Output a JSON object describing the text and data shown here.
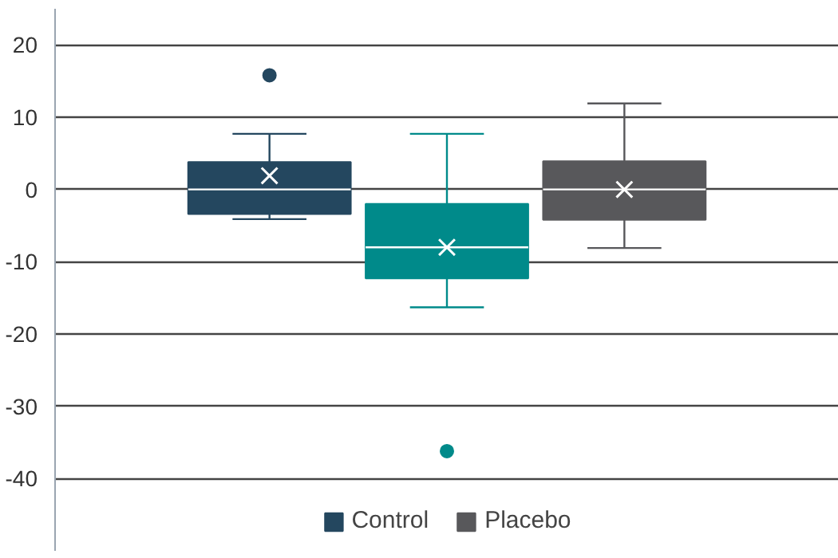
{
  "chart_data": {
    "type": "box",
    "categories": [
      null
    ],
    "ylim": [
      -50,
      25
    ],
    "yticks": [
      -40,
      -30,
      -20,
      -10,
      0,
      10,
      20
    ],
    "grid": "y",
    "legend": "bottom",
    "tick_labels": "y",
    "series": [
      {
        "name": "Control",
        "color": "#24475f",
        "boxes": [
          {
            "low": -4.1,
            "q1": -3.4,
            "median": 0,
            "q3": 3.8,
            "high": 7.7,
            "mean": 1.9,
            "outliers": [
              15.8
            ]
          }
        ]
      },
      {
        "color": "#008a8a",
        "boxes": [
          {
            "low": -16.3,
            "q1": -12.3,
            "median": -8,
            "q3": -2,
            "high": 7.7,
            "mean": -8,
            "outliers": [
              -36.2
            ]
          }
        ]
      },
      {
        "name": "Placebo",
        "color": "#58585b",
        "boxes": [
          {
            "low": -8.1,
            "q1": -4.2,
            "median": 0,
            "q3": 3.9,
            "high": 11.9,
            "mean": 0
          }
        ]
      }
    ]
  }
}
